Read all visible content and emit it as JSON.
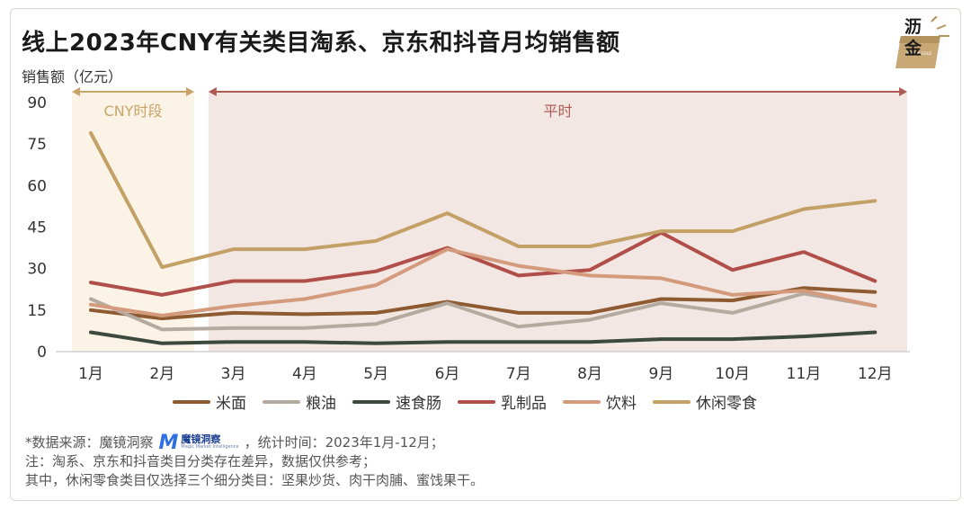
{
  "title": "线上2023年CNY有关类目淘系、京东和抖音月均销售额",
  "logo": {
    "line1": "沥",
    "line2": "金",
    "icon": "sun-ray-book-logo"
  },
  "chart_data": {
    "type": "line",
    "ylabel": "销售额（亿元）",
    "ylim": [
      0,
      90
    ],
    "yticks": [
      0,
      15,
      30,
      45,
      60,
      75,
      90
    ],
    "categories": [
      "1月",
      "2月",
      "3月",
      "4月",
      "5月",
      "6月",
      "7月",
      "8月",
      "9月",
      "10月",
      "11月",
      "12月"
    ],
    "regions": [
      {
        "label": "CNY时段",
        "from": 0,
        "to": 1.45,
        "color": "#fbf3e6"
      },
      {
        "label": "平时",
        "from": 1.65,
        "to": 11.35,
        "color": "#f3e7e3"
      }
    ],
    "series": [
      {
        "name": "米面",
        "color": "#8e5a32",
        "values": [
          15,
          12,
          14,
          13.5,
          14,
          18,
          14,
          14,
          19,
          18.5,
          23,
          21.5
        ]
      },
      {
        "name": "粮油",
        "color": "#b5aa9f",
        "values": [
          19,
          8,
          8.5,
          8.5,
          10,
          17.5,
          9,
          11.5,
          17.5,
          14,
          21,
          16.5
        ]
      },
      {
        "name": "速食肠",
        "color": "#3c4a3e",
        "values": [
          7,
          3,
          3.5,
          3.5,
          3,
          3.5,
          3.5,
          3.5,
          4.5,
          4.5,
          5.5,
          7
        ]
      },
      {
        "name": "乳制品",
        "color": "#b04f49",
        "values": [
          25,
          20.5,
          25.5,
          25.5,
          29,
          37.5,
          27.5,
          29.5,
          43,
          29.5,
          36,
          25.5
        ]
      },
      {
        "name": "饮料",
        "color": "#d49a7c",
        "values": [
          17,
          13,
          16.5,
          19,
          24,
          37,
          31,
          27.5,
          26.5,
          20.5,
          22,
          16.5
        ]
      },
      {
        "name": "休闲零食",
        "color": "#c2a066",
        "values": [
          79,
          30.5,
          37,
          37,
          40,
          50,
          38,
          38,
          43.5,
          43.5,
          51.5,
          54.5
        ]
      }
    ],
    "legend_position": "bottom",
    "grid": false
  },
  "notes": {
    "line1_prefix": "*数据来源：魔镜洞察",
    "line1_logo_name": "魔镜洞察",
    "line1_logo_sub": "Magic Market Intelligence",
    "line1_suffix": "，统计时间：2023年1月-12月；",
    "line2": "注：淘系、京东和抖音类目分类存在差异，数据仅供参考；",
    "line3": "其中，休闲零食类目仅选择三个细分类目：坚果炒货、肉干肉脯、蜜饯果干。"
  }
}
